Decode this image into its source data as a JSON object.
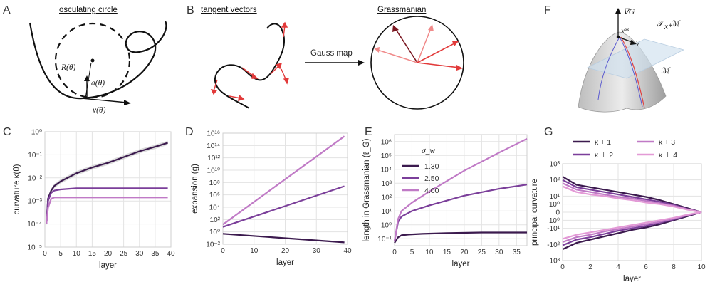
{
  "panels": {
    "A": {
      "letter": "A",
      "title": "osculating circle",
      "labels": [
        "R(θ)",
        "a(θ)",
        "v(θ)"
      ]
    },
    "B": {
      "letter": "B",
      "title_left": "tangent vectors",
      "title_right": "Grassmanian",
      "arrow_label": "Gauss map"
    },
    "F": {
      "letter": "F",
      "labels": [
        "∇G",
        "x*",
        "𝒯",
        "x*",
        "ℳ",
        "v",
        "ℳ"
      ]
    }
  },
  "colors": {
    "dark": "#3b1a4e",
    "mid": "#7b3f9a",
    "light": "#c07ac6",
    "lighter": "#e39ad6",
    "red": "#e23a3a",
    "pink": "#f08a8a",
    "darkred": "#7a1620"
  },
  "chart_data": [
    {
      "id": "C",
      "letter": "C",
      "type": "line",
      "xlabel": "layer",
      "ylabel": "curvature  κ(θ)",
      "xlim": [
        0,
        40
      ],
      "xticks": [
        0,
        5,
        10,
        15,
        20,
        25,
        30,
        35,
        40
      ],
      "ylog": true,
      "ylim": [
        -5,
        0
      ],
      "yticks": [
        {
          "e": 0,
          "label": "10⁰"
        },
        {
          "e": -1,
          "label": "10⁻¹"
        },
        {
          "e": -2,
          "label": "10⁻²"
        },
        {
          "e": -3,
          "label": "10⁻³"
        },
        {
          "e": -4,
          "label": "10⁻⁴"
        },
        {
          "e": -5,
          "label": "10⁻⁵"
        }
      ],
      "grid": true,
      "series": [
        {
          "color": "#3b1a4e",
          "x": [
            0.5,
            1,
            2,
            3,
            5,
            10,
            15,
            20,
            25,
            30,
            35,
            39
          ],
          "logy": [
            -4.0,
            -2.9,
            -2.55,
            -2.35,
            -2.15,
            -1.8,
            -1.55,
            -1.35,
            -1.1,
            -0.85,
            -0.65,
            -0.48
          ]
        },
        {
          "color": "#7b3f9a",
          "x": [
            0.5,
            1,
            2,
            3,
            5,
            10,
            20,
            30,
            39
          ],
          "logy": [
            -4.0,
            -3.0,
            -2.65,
            -2.55,
            -2.5,
            -2.45,
            -2.45,
            -2.45,
            -2.45
          ]
        },
        {
          "color": "#c07ac6",
          "x": [
            0.5,
            1,
            2,
            3,
            5,
            10,
            20,
            30,
            39
          ],
          "logy": [
            -4.0,
            -3.3,
            -2.9,
            -2.85,
            -2.85,
            -2.85,
            -2.85,
            -2.85,
            -2.85
          ]
        }
      ]
    },
    {
      "id": "D",
      "letter": "D",
      "type": "line",
      "xlabel": "layer",
      "ylabel": "expansion  (g)",
      "xlim": [
        0,
        40
      ],
      "xticks": [
        0,
        10,
        20,
        30,
        40
      ],
      "ylog": true,
      "ylim": [
        -2,
        16
      ],
      "yticks": [
        {
          "e": 16,
          "label": "10¹⁶"
        },
        {
          "e": 14,
          "label": "10¹⁴"
        },
        {
          "e": 12,
          "label": "10¹²"
        },
        {
          "e": 10,
          "label": "10¹⁰"
        },
        {
          "e": 8,
          "label": "10⁸"
        },
        {
          "e": 6,
          "label": "10⁶"
        },
        {
          "e": 4,
          "label": "10⁴"
        },
        {
          "e": 2,
          "label": "10²"
        },
        {
          "e": 0,
          "label": "10⁰"
        },
        {
          "e": -2,
          "label": "10⁻²"
        }
      ],
      "grid": true,
      "series": [
        {
          "color": "#c07ac6",
          "x": [
            0,
            39
          ],
          "logy": [
            1.2,
            15.5
          ]
        },
        {
          "color": "#7b3f9a",
          "x": [
            0,
            39
          ],
          "logy": [
            0.8,
            7.4
          ]
        },
        {
          "color": "#3b1a4e",
          "x": [
            0,
            39
          ],
          "logy": [
            -0.3,
            -1.7
          ]
        }
      ]
    },
    {
      "id": "E",
      "letter": "E",
      "type": "line",
      "xlabel": "layer",
      "ylabel": "length in Grassmanian  (ℓ_G)",
      "xlim": [
        0,
        38
      ],
      "xticks": [
        0,
        5,
        10,
        15,
        20,
        25,
        30,
        35
      ],
      "ylog": true,
      "ylim": [
        -1.5,
        6.5
      ],
      "yticks": [
        {
          "e": 6,
          "label": "10⁶"
        },
        {
          "e": 5,
          "label": "10⁵"
        },
        {
          "e": 4,
          "label": "10⁴"
        },
        {
          "e": 3,
          "label": "10³"
        },
        {
          "e": 2,
          "label": "10²"
        },
        {
          "e": 1,
          "label": "10¹"
        },
        {
          "e": 0,
          "label": "10⁰"
        },
        {
          "e": -1,
          "label": "10⁻¹"
        }
      ],
      "grid": true,
      "legend_title": "σ_w",
      "legend_position": "top-left",
      "series": [
        {
          "name": "1.30",
          "color": "#3b1a4e",
          "x": [
            0,
            1,
            2,
            4,
            8,
            15,
            25,
            38
          ],
          "logy": [
            -1.3,
            -0.9,
            -0.75,
            -0.7,
            -0.65,
            -0.6,
            -0.55,
            -0.55
          ]
        },
        {
          "name": "2.50",
          "color": "#7b3f9a",
          "x": [
            0,
            1,
            2,
            5,
            10,
            20,
            30,
            38
          ],
          "logy": [
            -1.2,
            0.2,
            0.6,
            1.0,
            1.4,
            2.1,
            2.6,
            2.9
          ]
        },
        {
          "name": "4.00",
          "color": "#c07ac6",
          "x": [
            0,
            1,
            2,
            5,
            10,
            20,
            30,
            38
          ],
          "logy": [
            -1.2,
            0.4,
            1.0,
            1.6,
            2.4,
            3.9,
            5.2,
            6.2
          ]
        }
      ]
    },
    {
      "id": "G",
      "letter": "G",
      "type": "line",
      "xlabel": "layer",
      "ylabel": "principal curvature",
      "xlim": [
        0,
        10
      ],
      "xticks": [
        0,
        2,
        4,
        6,
        8,
        10
      ],
      "yscale": "symlog",
      "yticks": [
        {
          "v": 3,
          "label": "10³"
        },
        {
          "v": 2,
          "label": "10²"
        },
        {
          "v": 1,
          "label": "10¹"
        },
        {
          "v": 0.5,
          "label": "10⁰"
        },
        {
          "v": 0,
          "label": "0"
        },
        {
          "v": -0.5,
          "label": "10⁰"
        },
        {
          "v": -1,
          "label": "-10¹"
        },
        {
          "v": -2,
          "label": "-10²"
        },
        {
          "v": -3,
          "label": "-10³"
        }
      ],
      "grid": true,
      "legend_position": "top",
      "series": [
        {
          "name": "κ + 1",
          "color": "#3b1a4e",
          "x": [
            0,
            1,
            2,
            3,
            4,
            5,
            6,
            7,
            8,
            9,
            10
          ],
          "sy": [
            2.2,
            1.7,
            1.55,
            1.4,
            1.25,
            1.1,
            0.95,
            0.75,
            0.5,
            0.25,
            0.0
          ]
        },
        {
          "name": "κ ⊥ 2",
          "color": "#7b3f9a",
          "x": [
            0,
            1,
            2,
            3,
            4,
            5,
            6,
            7,
            8,
            9,
            10
          ],
          "sy": [
            2.0,
            1.55,
            1.4,
            1.25,
            1.1,
            0.95,
            0.8,
            0.65,
            0.45,
            0.2,
            0.0
          ]
        },
        {
          "name": "κ + 3",
          "color": "#c07ac6",
          "x": [
            0,
            1,
            2,
            3,
            4,
            5,
            6,
            7,
            8,
            9,
            10
          ],
          "sy": [
            1.8,
            1.4,
            1.25,
            1.1,
            0.95,
            0.85,
            0.7,
            0.55,
            0.4,
            0.18,
            0.0
          ]
        },
        {
          "name": "κ ⊥ 4",
          "color": "#e39ad6",
          "x": [
            0,
            1,
            2,
            3,
            4,
            5,
            6,
            7,
            8,
            9,
            10
          ],
          "sy": [
            1.6,
            1.25,
            1.1,
            1.0,
            0.85,
            0.75,
            0.6,
            0.5,
            0.35,
            0.15,
            0.0
          ]
        },
        {
          "color": "#3b1a4e",
          "x": [
            0,
            1,
            2,
            3,
            4,
            5,
            6,
            7,
            8,
            9,
            10
          ],
          "sy": [
            -2.3,
            -1.9,
            -1.7,
            -1.5,
            -1.3,
            -1.1,
            -0.95,
            -0.75,
            -0.5,
            -0.25,
            0.0
          ]
        },
        {
          "color": "#7b3f9a",
          "x": [
            0,
            1,
            2,
            3,
            4,
            5,
            6,
            7,
            8,
            9,
            10
          ],
          "sy": [
            -2.05,
            -1.7,
            -1.55,
            -1.35,
            -1.15,
            -1.0,
            -0.85,
            -0.65,
            -0.45,
            -0.2,
            0.0
          ]
        },
        {
          "color": "#c07ac6",
          "x": [
            0,
            1,
            2,
            3,
            4,
            5,
            6,
            7,
            8,
            9,
            10
          ],
          "sy": [
            -1.85,
            -1.55,
            -1.4,
            -1.2,
            -1.05,
            -0.9,
            -0.75,
            -0.6,
            -0.4,
            -0.18,
            0.0
          ]
        },
        {
          "color": "#e39ad6",
          "x": [
            0,
            1,
            2,
            3,
            4,
            5,
            6,
            7,
            8,
            9,
            10
          ],
          "sy": [
            -1.65,
            -1.4,
            -1.25,
            -1.1,
            -0.95,
            -0.8,
            -0.65,
            -0.5,
            -0.35,
            -0.15,
            0.0
          ]
        }
      ]
    }
  ]
}
